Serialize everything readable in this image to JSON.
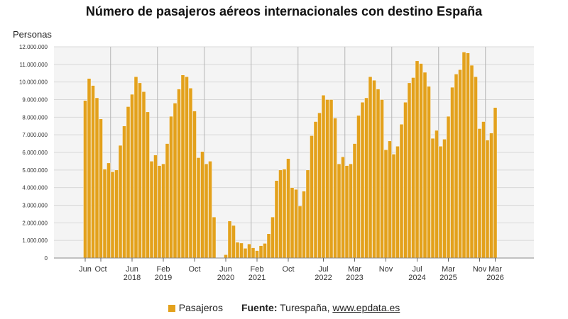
{
  "chart_data": {
    "type": "bar",
    "title": "Número de pasajeros aéreos internacionales con destino España",
    "ylabel": "Personas",
    "xlabel": "",
    "ylim": [
      0,
      12000000
    ],
    "y_ticks": [
      0,
      1000000,
      2000000,
      3000000,
      4000000,
      5000000,
      6000000,
      7000000,
      8000000,
      9000000,
      10000000,
      11000000,
      12000000
    ],
    "y_tick_labels": [
      "0",
      "1.000.000",
      "2.000.000",
      "3.000.000",
      "4.000.000",
      "5.000.000",
      "6.000.000",
      "7.000.000",
      "8.000.000",
      "9.000.000",
      "10.000.000",
      "11.000.000",
      "12.000.000"
    ],
    "x_start": "2017-06",
    "x_end": "2026-03",
    "x_ticks": [
      {
        "month": "2017-06",
        "label": "Jun",
        "year": ""
      },
      {
        "month": "2017-10",
        "label": "Oct",
        "year": ""
      },
      {
        "month": "2018-06",
        "label": "Jun",
        "year": "2018"
      },
      {
        "month": "2019-02",
        "label": "Feb",
        "year": "2019"
      },
      {
        "month": "2019-10",
        "label": "Oct",
        "year": ""
      },
      {
        "month": "2020-06",
        "label": "Jun",
        "year": "2020"
      },
      {
        "month": "2021-02",
        "label": "Feb",
        "year": "2021"
      },
      {
        "month": "2021-10",
        "label": "Oct",
        "year": ""
      },
      {
        "month": "2022-07",
        "label": "Jul",
        "year": "2022"
      },
      {
        "month": "2023-03",
        "label": "Mar",
        "year": "2023"
      },
      {
        "month": "2023-11",
        "label": "Nov",
        "year": ""
      },
      {
        "month": "2024-07",
        "label": "Jul",
        "year": "2024"
      },
      {
        "month": "2025-03",
        "label": "Mar",
        "year": "2025"
      },
      {
        "month": "2025-11",
        "label": "Nov",
        "year": ""
      },
      {
        "month": "2026-03",
        "label": "Mar",
        "year": "2026"
      }
    ],
    "year_boundaries": [
      "2018-01",
      "2019-01",
      "2020-01",
      "2021-01",
      "2022-01",
      "2023-01",
      "2024-01",
      "2025-01",
      "2026-01"
    ],
    "grid": true,
    "legend_position": "bottom",
    "series": [
      {
        "name": "Pasajeros",
        "color": "#e3a11c",
        "values": [
          8950000,
          10200000,
          9800000,
          9100000,
          7900000,
          5050000,
          5400000,
          4900000,
          5000000,
          6400000,
          7500000,
          8600000,
          9300000,
          10300000,
          9950000,
          9450000,
          8300000,
          5500000,
          5850000,
          5250000,
          5350000,
          6500000,
          8050000,
          8800000,
          9600000,
          10400000,
          10300000,
          9650000,
          8350000,
          5700000,
          6050000,
          5350000,
          5500000,
          2330000,
          0,
          0,
          190000,
          2100000,
          1850000,
          900000,
          850000,
          550000,
          800000,
          580000,
          420000,
          700000,
          830000,
          1380000,
          2330000,
          4400000,
          5000000,
          5050000,
          5650000,
          4000000,
          3900000,
          2950000,
          3800000,
          5000000,
          6950000,
          7750000,
          8250000,
          9250000,
          9000000,
          9000000,
          7950000,
          5350000,
          5750000,
          5250000,
          5350000,
          6500000,
          8100000,
          8850000,
          9100000,
          10300000,
          10100000,
          9600000,
          9000000,
          6150000,
          6650000,
          5900000,
          6350000,
          7600000,
          8850000,
          9950000,
          10250000,
          11200000,
          11050000,
          10550000,
          9750000,
          6800000,
          7250000,
          6350000,
          6750000,
          8050000,
          9700000,
          10450000,
          10700000,
          11700000,
          11650000,
          10950000,
          10300000,
          7350000,
          7750000,
          6700000,
          7100000,
          8550000
        ]
      }
    ]
  },
  "legend": {
    "series_label": "Pasajeros",
    "source_label": "Fuente:",
    "source_text": " Turespaña, ",
    "source_link": "www.epdata.es"
  },
  "colors": {
    "bar": "#e3a11c",
    "bar_stroke": "#ffffff",
    "plot_background": "#f4f4f4",
    "grid": "#d8d8d8",
    "year_line": "#b5b5b5"
  }
}
